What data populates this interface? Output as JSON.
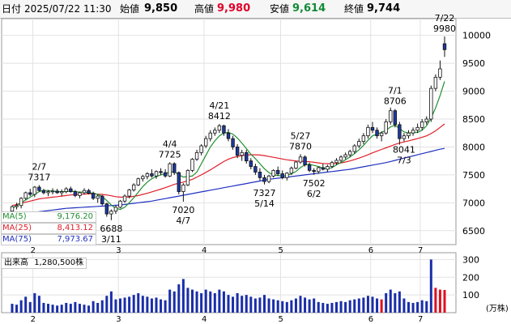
{
  "header": {
    "date_label": "日付",
    "date_value": "2025/07/22 11:30",
    "open_label": "始値",
    "open_value": "9,850",
    "high_label": "高値",
    "high_value": "9,980",
    "low_label": "安値",
    "low_value": "9,614",
    "close_label": "終値",
    "close_value": "9,744"
  },
  "legend": {
    "ma5_label": "MA(5)",
    "ma5_value": "9,176.20",
    "ma25_label": "MA(25)",
    "ma25_value": "8,413.12",
    "ma75_label": "MA(75)",
    "ma75_value": "7,973.67"
  },
  "volume_label": "出来高",
  "volume_value": "1,280,500株",
  "volume_unit": "(万株)",
  "colors": {
    "up": "#ffffff",
    "down": "#1d3aa0",
    "ma5": "#1f8f2f",
    "ma25": "#e0202a",
    "ma75": "#2030c0",
    "vol": "#1a2ea8",
    "vol_highlight": "#e01020"
  },
  "chart_data": {
    "type": "candlestick",
    "price_axis": {
      "ticks": [
        "10000",
        "9500",
        "9000",
        "8500",
        "8000",
        "7500",
        "7000",
        "6500"
      ],
      "ylim": [
        6250,
        10300
      ]
    },
    "volume_axis": {
      "ticks": [
        "300",
        "200",
        "100"
      ],
      "ylim": [
        0,
        320
      ]
    },
    "x_ticks": [
      "2",
      "3",
      "4",
      "5",
      "6",
      "7"
    ],
    "annotations": [
      {
        "date": "2/7",
        "value": "7317"
      },
      {
        "date": "3/11",
        "value": "6688"
      },
      {
        "date": "4/4",
        "value": "7725"
      },
      {
        "date": "4/7",
        "value": "7020"
      },
      {
        "date": "4/21",
        "value": "8412"
      },
      {
        "date": "5/14",
        "value": "7327"
      },
      {
        "date": "5/27",
        "value": "7870"
      },
      {
        "date": "6/2",
        "value": "7502"
      },
      {
        "date": "7/1",
        "value": "8706"
      },
      {
        "date": "7/3",
        "value": "8041"
      },
      {
        "date": "7/22",
        "value": "9980"
      }
    ],
    "candles": [
      [
        6850,
        6950,
        6800,
        6930,
        50
      ],
      [
        6930,
        7000,
        6880,
        6950,
        45
      ],
      [
        6950,
        7100,
        6900,
        7080,
        70
      ],
      [
        7080,
        7200,
        7050,
        7180,
        90
      ],
      [
        7180,
        7250,
        7120,
        7150,
        60
      ],
      [
        7150,
        7300,
        7100,
        7280,
        110
      ],
      [
        7280,
        7317,
        7200,
        7220,
        95
      ],
      [
        7220,
        7250,
        7150,
        7180,
        55
      ],
      [
        7180,
        7230,
        7120,
        7200,
        50
      ],
      [
        7200,
        7260,
        7150,
        7210,
        45
      ],
      [
        7210,
        7250,
        7160,
        7180,
        40
      ],
      [
        7180,
        7240,
        7120,
        7200,
        45
      ],
      [
        7200,
        7280,
        7170,
        7250,
        55
      ],
      [
        7250,
        7290,
        7180,
        7200,
        50
      ],
      [
        7200,
        7230,
        7100,
        7130,
        60
      ],
      [
        7130,
        7200,
        7080,
        7180,
        50
      ],
      [
        7180,
        7260,
        7150,
        7220,
        45
      ],
      [
        7220,
        7250,
        7150,
        7170,
        40
      ],
      [
        7170,
        7200,
        7050,
        7080,
        65
      ],
      [
        7080,
        7150,
        7000,
        7120,
        55
      ],
      [
        7120,
        7140,
        6950,
        6980,
        70
      ],
      [
        6980,
        7000,
        6750,
        6800,
        95
      ],
      [
        6800,
        6880,
        6688,
        6850,
        120
      ],
      [
        6850,
        6950,
        6800,
        6920,
        75
      ],
      [
        6920,
        7050,
        6900,
        7030,
        80
      ],
      [
        7030,
        7150,
        7000,
        7120,
        85
      ],
      [
        7120,
        7250,
        7080,
        7230,
        90
      ],
      [
        7230,
        7350,
        7200,
        7320,
        100
      ],
      [
        7320,
        7450,
        7300,
        7430,
        110
      ],
      [
        7430,
        7500,
        7380,
        7470,
        95
      ],
      [
        7470,
        7550,
        7420,
        7520,
        90
      ],
      [
        7520,
        7600,
        7450,
        7480,
        80
      ],
      [
        7480,
        7580,
        7430,
        7560,
        85
      ],
      [
        7560,
        7620,
        7500,
        7540,
        75
      ],
      [
        7540,
        7600,
        7450,
        7480,
        70
      ],
      [
        7480,
        7725,
        7460,
        7700,
        130
      ],
      [
        7700,
        7725,
        7500,
        7540,
        120
      ],
      [
        7540,
        7560,
        7150,
        7200,
        160
      ],
      [
        7200,
        7350,
        7020,
        7320,
        190
      ],
      [
        7320,
        7600,
        7300,
        7580,
        140
      ],
      [
        7580,
        7800,
        7550,
        7780,
        130
      ],
      [
        7780,
        7950,
        7750,
        7900,
        120
      ],
      [
        7900,
        8050,
        7850,
        8020,
        110
      ],
      [
        8020,
        8200,
        7980,
        8150,
        130
      ],
      [
        8150,
        8300,
        8100,
        8250,
        120
      ],
      [
        8250,
        8350,
        8200,
        8300,
        110
      ],
      [
        8300,
        8412,
        8250,
        8380,
        130
      ],
      [
        8380,
        8400,
        8200,
        8250,
        120
      ],
      [
        8250,
        8320,
        8100,
        8150,
        100
      ],
      [
        8150,
        8200,
        7950,
        8000,
        90
      ],
      [
        8000,
        8050,
        7800,
        7850,
        110
      ],
      [
        7850,
        7950,
        7750,
        7900,
        95
      ],
      [
        7900,
        7950,
        7700,
        7750,
        100
      ],
      [
        7750,
        7800,
        7600,
        7650,
        90
      ],
      [
        7650,
        7700,
        7500,
        7550,
        80
      ],
      [
        7550,
        7620,
        7400,
        7450,
        85
      ],
      [
        7450,
        7500,
        7327,
        7380,
        100
      ],
      [
        7380,
        7500,
        7350,
        7480,
        80
      ],
      [
        7480,
        7600,
        7450,
        7580,
        75
      ],
      [
        7580,
        7650,
        7480,
        7520,
        70
      ],
      [
        7520,
        7580,
        7420,
        7450,
        65
      ],
      [
        7450,
        7550,
        7400,
        7530,
        60
      ],
      [
        7530,
        7650,
        7500,
        7620,
        70
      ],
      [
        7620,
        7750,
        7600,
        7730,
        80
      ],
      [
        7730,
        7870,
        7700,
        7820,
        95
      ],
      [
        7820,
        7850,
        7650,
        7680,
        85
      ],
      [
        7680,
        7720,
        7550,
        7580,
        75
      ],
      [
        7580,
        7620,
        7502,
        7560,
        80
      ],
      [
        7560,
        7650,
        7520,
        7630,
        60
      ],
      [
        7630,
        7700,
        7580,
        7600,
        55
      ],
      [
        7600,
        7680,
        7550,
        7650,
        50
      ],
      [
        7650,
        7750,
        7620,
        7720,
        55
      ],
      [
        7720,
        7800,
        7680,
        7760,
        60
      ],
      [
        7760,
        7850,
        7720,
        7820,
        65
      ],
      [
        7820,
        7900,
        7780,
        7860,
        60
      ],
      [
        7860,
        7950,
        7820,
        7920,
        70
      ],
      [
        7920,
        8050,
        7880,
        8020,
        75
      ],
      [
        8020,
        8150,
        7980,
        8100,
        80
      ],
      [
        8100,
        8250,
        8050,
        8200,
        85
      ],
      [
        8200,
        8400,
        8150,
        8350,
        95
      ],
      [
        8350,
        8450,
        8250,
        8300,
        90
      ],
      [
        8300,
        8350,
        8150,
        8200,
        80
      ],
      [
        8200,
        8280,
        8100,
        8250,
        75
      ],
      [
        8250,
        8500,
        8220,
        8450,
        110
      ],
      [
        8450,
        8706,
        8400,
        8650,
        130
      ],
      [
        8650,
        8680,
        8350,
        8400,
        110
      ],
      [
        8400,
        8450,
        8041,
        8150,
        120
      ],
      [
        8150,
        8250,
        8100,
        8200,
        80
      ],
      [
        8200,
        8300,
        8150,
        8250,
        60
      ],
      [
        8250,
        8350,
        8200,
        8300,
        55
      ],
      [
        8300,
        8420,
        8250,
        8350,
        60
      ],
      [
        8350,
        8500,
        8300,
        8450,
        70
      ],
      [
        8450,
        8550,
        8400,
        8500,
        65
      ],
      [
        8500,
        9100,
        8450,
        9050,
        300
      ],
      [
        9050,
        9300,
        9000,
        9250,
        140
      ],
      [
        9250,
        9550,
        9200,
        9400,
        130
      ],
      [
        9850,
        9980,
        9614,
        9744,
        128
      ]
    ],
    "ma5": [
      6900,
      6950,
      7000,
      7050,
      7100,
      7150,
      7200,
      7220,
      7220,
      7210,
      7200,
      7200,
      7200,
      7210,
      7200,
      7190,
      7190,
      7180,
      7170,
      7150,
      7110,
      7040,
      6960,
      6900,
      6880,
      6920,
      7000,
      7090,
      7190,
      7290,
      7370,
      7430,
      7470,
      7500,
      7520,
      7550,
      7560,
      7500,
      7460,
      7470,
      7480,
      7550,
      7700,
      7850,
      8000,
      8110,
      8200,
      8250,
      8260,
      8230,
      8160,
      8070,
      7970,
      7870,
      7790,
      7700,
      7610,
      7540,
      7500,
      7490,
      7480,
      7490,
      7520,
      7560,
      7630,
      7680,
      7690,
      7670,
      7650,
      7620,
      7610,
      7630,
      7680,
      7720,
      7770,
      7820,
      7880,
      7950,
      8030,
      8120,
      8200,
      8230,
      8260,
      8300,
      8360,
      8390,
      8330,
      8270,
      8250,
      8260,
      8260,
      8300,
      8380,
      8520,
      8700,
      8920,
      9176
    ],
    "ma25": [
      6950,
      6970,
      6990,
      7010,
      7030,
      7050,
      7070,
      7080,
      7090,
      7100,
      7110,
      7120,
      7130,
      7140,
      7145,
      7150,
      7155,
      7160,
      7160,
      7155,
      7150,
      7140,
      7125,
      7110,
      7100,
      7100,
      7105,
      7115,
      7130,
      7150,
      7170,
      7195,
      7220,
      7245,
      7270,
      7300,
      7330,
      7350,
      7370,
      7395,
      7420,
      7460,
      7500,
      7545,
      7590,
      7640,
      7690,
      7740,
      7780,
      7810,
      7830,
      7845,
      7855,
      7860,
      7860,
      7855,
      7845,
      7830,
      7815,
      7800,
      7785,
      7770,
      7760,
      7750,
      7745,
      7740,
      7735,
      7725,
      7715,
      7705,
      7700,
      7700,
      7705,
      7715,
      7730,
      7750,
      7775,
      7800,
      7830,
      7860,
      7895,
      7925,
      7955,
      7985,
      8015,
      8045,
      8070,
      8090,
      8110,
      8130,
      8150,
      8175,
      8200,
      8240,
      8290,
      8350,
      8413
    ],
    "ma75": [
      6780,
      6790,
      6800,
      6810,
      6820,
      6830,
      6840,
      6850,
      6860,
      6870,
      6880,
      6890,
      6900,
      6905,
      6910,
      6915,
      6920,
      6925,
      6930,
      6935,
      6940,
      6945,
      6950,
      6955,
      6960,
      6970,
      6980,
      6990,
      7000,
      7010,
      7020,
      7030,
      7045,
      7060,
      7075,
      7090,
      7105,
      7120,
      7135,
      7150,
      7165,
      7180,
      7195,
      7210,
      7225,
      7240,
      7255,
      7270,
      7285,
      7300,
      7315,
      7330,
      7345,
      7360,
      7375,
      7390,
      7405,
      7420,
      7430,
      7440,
      7450,
      7460,
      7470,
      7480,
      7490,
      7500,
      7510,
      7520,
      7530,
      7540,
      7550,
      7560,
      7570,
      7580,
      7590,
      7600,
      7615,
      7630,
      7645,
      7660,
      7675,
      7690,
      7705,
      7720,
      7740,
      7760,
      7780,
      7800,
      7820,
      7840,
      7860,
      7880,
      7900,
      7920,
      7940,
      7960,
      7974
    ]
  }
}
